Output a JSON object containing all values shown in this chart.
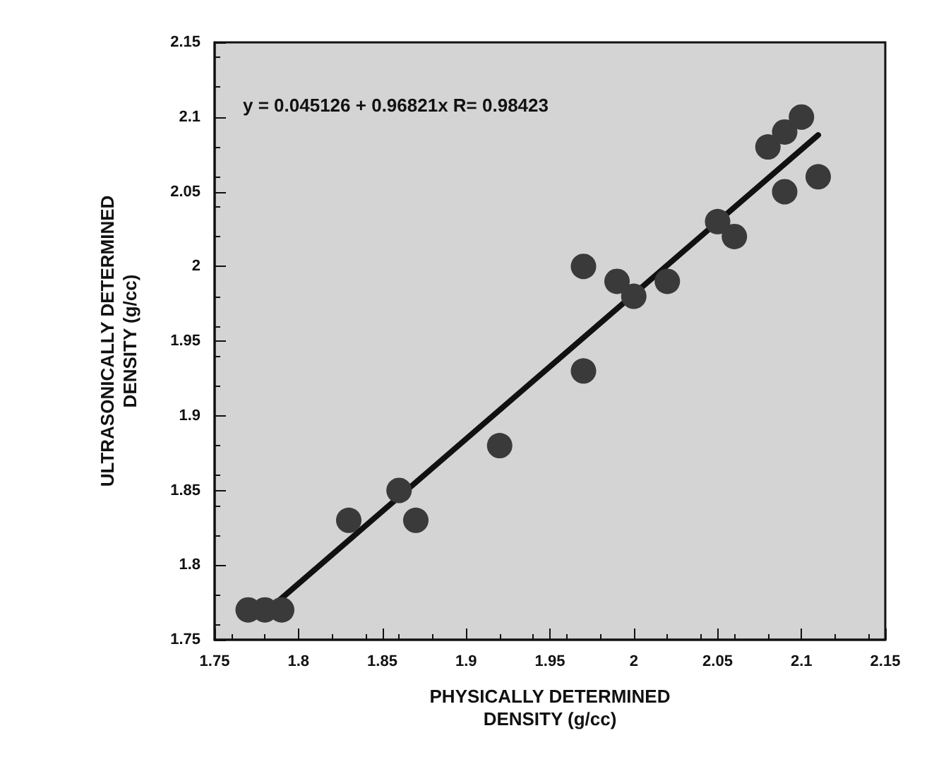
{
  "chart_data": {
    "type": "scatter",
    "xlabel": "PHYSICALLY DETERMINED\nDENSITY (g/cc)",
    "ylabel": "ULTRASONICALLY DETERMINED\nDENSITY (g/cc)",
    "annotations": [
      "y = 0.045126 + 0.96821x R= 0.98423"
    ],
    "xlim": [
      1.75,
      2.15
    ],
    "xticks": [
      1.75,
      1.8,
      1.85,
      1.9,
      1.95,
      2,
      2.05,
      2.1,
      2.15
    ],
    "ylim": [
      1.75,
      2.15
    ],
    "yticks": [
      1.75,
      1.8,
      1.85,
      1.9,
      1.95,
      2,
      2.05,
      2.1,
      2.15
    ],
    "grid": false,
    "marker": "circle",
    "series": [
      {
        "color": "#3a3a3a",
        "x": [
          1.77,
          1.78,
          1.79,
          1.83,
          1.86,
          1.87,
          1.92,
          1.97,
          1.97,
          1.99,
          2.0,
          2.02,
          2.05,
          2.06,
          2.08,
          2.09,
          2.1,
          2.09,
          2.11
        ],
        "values": [
          1.77,
          1.77,
          1.77,
          1.83,
          1.85,
          1.83,
          1.88,
          2.0,
          1.93,
          1.99,
          1.98,
          1.99,
          2.03,
          2.02,
          2.08,
          2.09,
          2.1,
          2.05,
          2.06
        ]
      },
      {
        "type": "line",
        "color": "#111111",
        "marker": "none",
        "line_style": "solid",
        "x": [
          1.785,
          2.11
        ],
        "values": [
          1.773,
          2.088
        ]
      }
    ]
  }
}
